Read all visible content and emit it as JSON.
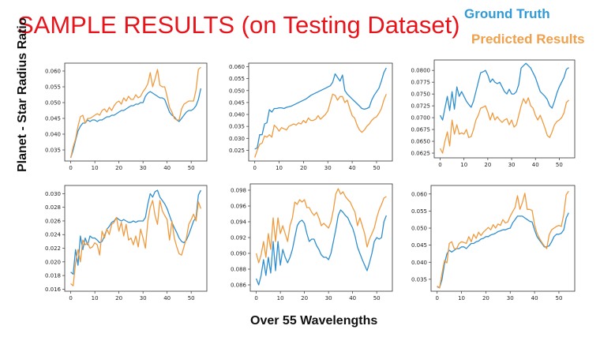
{
  "title": "SAMPLE RESULTS (on Testing Dataset)",
  "legend": {
    "ground_truth": "Ground Truth",
    "predicted": "Predicted Results"
  },
  "ylabel": "Planet - Star  Radius Ratio",
  "xlabel": "Over 55 Wavelengths",
  "colors": {
    "ground_truth": "#2f8fcf",
    "predicted": "#f09a3e",
    "title": "#e8141b"
  },
  "chart_data": [
    {
      "type": "line",
      "ylim": [
        0.0315,
        0.0625
      ],
      "yticks": [
        "0.035",
        "0.040",
        "0.045",
        "0.050",
        "0.055",
        "0.060"
      ],
      "xticks": [
        "0",
        "10",
        "20",
        "30",
        "40",
        "50"
      ],
      "series": [
        {
          "role": "ground_truth",
          "values": [
            0.0325,
            0.035,
            0.038,
            0.041,
            0.0425,
            0.0435,
            0.0435,
            0.0445,
            0.044,
            0.0445,
            0.0445,
            0.044,
            0.0445,
            0.0445,
            0.045,
            0.0455,
            0.0455,
            0.046,
            0.046,
            0.0465,
            0.047,
            0.0475,
            0.0475,
            0.048,
            0.0485,
            0.049,
            0.049,
            0.0495,
            0.0495,
            0.05,
            0.05,
            0.052,
            0.053,
            0.0535,
            0.053,
            0.0525,
            0.052,
            0.0515,
            0.0515,
            0.051,
            0.049,
            0.047,
            0.046,
            0.0455,
            0.0445,
            0.044,
            0.045,
            0.046,
            0.047,
            0.0475,
            0.0475,
            0.048,
            0.049,
            0.051,
            0.0545
          ]
        },
        {
          "role": "predicted",
          "values": [
            0.0325,
            0.036,
            0.0385,
            0.0425,
            0.0455,
            0.046,
            0.0435,
            0.045,
            0.045,
            0.0455,
            0.046,
            0.0465,
            0.046,
            0.0475,
            0.048,
            0.047,
            0.0485,
            0.0475,
            0.049,
            0.05,
            0.0505,
            0.0495,
            0.0515,
            0.0505,
            0.052,
            0.051,
            0.051,
            0.0525,
            0.0515,
            0.052,
            0.0535,
            0.0545,
            0.056,
            0.0595,
            0.055,
            0.0575,
            0.0605,
            0.0555,
            0.055,
            0.055,
            0.052,
            0.0485,
            0.047,
            0.045,
            0.0445,
            0.0445,
            0.048,
            0.0495,
            0.05,
            0.0505,
            0.0505,
            0.0505,
            0.054,
            0.0605,
            0.0612
          ]
        }
      ]
    },
    {
      "type": "line",
      "ylim": [
        0.0205,
        0.0615
      ],
      "yticks": [
        "0.025",
        "0.030",
        "0.035",
        "0.040",
        "0.045",
        "0.050",
        "0.055",
        "0.060"
      ],
      "xticks": [
        "0",
        "10",
        "20",
        "30",
        "40",
        "50"
      ],
      "series": [
        {
          "role": "ground_truth",
          "values": [
            0.0255,
            0.026,
            0.0315,
            0.0315,
            0.036,
            0.0365,
            0.042,
            0.041,
            0.0425,
            0.0425,
            0.0428,
            0.0428,
            0.0425,
            0.043,
            0.0432,
            0.0435,
            0.044,
            0.0445,
            0.045,
            0.0455,
            0.046,
            0.0465,
            0.0472,
            0.048,
            0.0485,
            0.049,
            0.0495,
            0.05,
            0.0505,
            0.051,
            0.0515,
            0.052,
            0.0535,
            0.057,
            0.0555,
            0.054,
            0.0565,
            0.05,
            0.0485,
            0.0475,
            0.0465,
            0.0455,
            0.0445,
            0.0435,
            0.0425,
            0.0422,
            0.0425,
            0.043,
            0.046,
            0.048,
            0.0495,
            0.051,
            0.054,
            0.0575,
            0.0595
          ]
        },
        {
          "role": "predicted",
          "values": [
            0.022,
            0.025,
            0.0275,
            0.028,
            0.031,
            0.0305,
            0.0315,
            0.0305,
            0.0355,
            0.0345,
            0.033,
            0.0345,
            0.034,
            0.0335,
            0.035,
            0.0355,
            0.036,
            0.0355,
            0.0365,
            0.036,
            0.0375,
            0.0365,
            0.0385,
            0.0375,
            0.0375,
            0.038,
            0.0395,
            0.038,
            0.039,
            0.04,
            0.0415,
            0.045,
            0.0485,
            0.048,
            0.046,
            0.0475,
            0.0475,
            0.045,
            0.046,
            0.0425,
            0.0395,
            0.0385,
            0.0355,
            0.0335,
            0.0325,
            0.0335,
            0.035,
            0.036,
            0.0375,
            0.0385,
            0.039,
            0.0405,
            0.0425,
            0.046,
            0.0485
          ]
        }
      ]
    },
    {
      "type": "line",
      "ylim": [
        0.0615,
        0.0822
      ],
      "yticks": [
        "0.0625",
        "0.0650",
        "0.0675",
        "0.0700",
        "0.0725",
        "0.0750",
        "0.0775",
        "0.0800"
      ],
      "xticks": [
        "0",
        "10",
        "20",
        "30",
        "40",
        "50"
      ],
      "series": [
        {
          "role": "ground_truth",
          "values": [
            0.0705,
            0.0695,
            0.072,
            0.0745,
            0.0715,
            0.0755,
            0.0718,
            0.0765,
            0.0745,
            0.0755,
            0.0745,
            0.0735,
            0.0728,
            0.0722,
            0.0735,
            0.0755,
            0.0775,
            0.0795,
            0.0797,
            0.08,
            0.079,
            0.0775,
            0.0782,
            0.0775,
            0.0772,
            0.0775,
            0.0765,
            0.0755,
            0.075,
            0.076,
            0.075,
            0.075,
            0.0755,
            0.077,
            0.0805,
            0.081,
            0.0815,
            0.081,
            0.0805,
            0.0795,
            0.0785,
            0.077,
            0.0755,
            0.075,
            0.0745,
            0.0738,
            0.0725,
            0.072,
            0.0735,
            0.0752,
            0.0765,
            0.0775,
            0.0785,
            0.0802,
            0.0806
          ]
        },
        {
          "role": "predicted",
          "values": [
            0.0635,
            0.0625,
            0.065,
            0.067,
            0.064,
            0.0695,
            0.0665,
            0.0685,
            0.0665,
            0.0668,
            0.0665,
            0.0675,
            0.0658,
            0.066,
            0.0675,
            0.0695,
            0.0705,
            0.072,
            0.0722,
            0.0725,
            0.0712,
            0.0695,
            0.071,
            0.0695,
            0.0702,
            0.0695,
            0.069,
            0.0695,
            0.0698,
            0.0685,
            0.0695,
            0.068,
            0.0685,
            0.0705,
            0.0725,
            0.074,
            0.073,
            0.0742,
            0.0725,
            0.072,
            0.0705,
            0.0695,
            0.0705,
            0.0692,
            0.0678,
            0.0662,
            0.0658,
            0.067,
            0.0685,
            0.0692,
            0.0695,
            0.07,
            0.071,
            0.0732,
            0.0737
          ]
        }
      ]
    },
    {
      "type": "line",
      "ylim": [
        0.0157,
        0.0312
      ],
      "yticks": [
        "0.016",
        "0.018",
        "0.020",
        "0.022",
        "0.024",
        "0.026",
        "0.028",
        "0.030"
      ],
      "xticks": [
        "0",
        "10",
        "20",
        "30",
        "40",
        "50"
      ],
      "series": [
        {
          "role": "ground_truth",
          "values": [
            0.0185,
            0.0182,
            0.0218,
            0.0195,
            0.0238,
            0.0218,
            0.0235,
            0.0225,
            0.0238,
            0.0235,
            0.0235,
            0.0232,
            0.0228,
            0.023,
            0.0238,
            0.0248,
            0.0252,
            0.0258,
            0.026,
            0.0265,
            0.0262,
            0.026,
            0.0262,
            0.026,
            0.0258,
            0.0258,
            0.026,
            0.0258,
            0.026,
            0.026,
            0.026,
            0.0265,
            0.0285,
            0.03,
            0.0295,
            0.0303,
            0.0305,
            0.0295,
            0.029,
            0.0285,
            0.0278,
            0.0268,
            0.0258,
            0.025,
            0.0243,
            0.0235,
            0.023,
            0.0228,
            0.0232,
            0.024,
            0.025,
            0.026,
            0.0265,
            0.0298,
            0.0305
          ]
        },
        {
          "role": "predicted",
          "values": [
            0.0168,
            0.0165,
            0.0198,
            0.0218,
            0.02,
            0.0232,
            0.0225,
            0.0228,
            0.022,
            0.0222,
            0.0228,
            0.0225,
            0.021,
            0.0245,
            0.0235,
            0.0248,
            0.024,
            0.0255,
            0.0258,
            0.0265,
            0.0245,
            0.0258,
            0.0238,
            0.0255,
            0.0232,
            0.0235,
            0.0225,
            0.0238,
            0.0222,
            0.0248,
            0.0235,
            0.022,
            0.026,
            0.028,
            0.029,
            0.0268,
            0.0255,
            0.029,
            0.0275,
            0.0268,
            0.0262,
            0.0232,
            0.026,
            0.0235,
            0.0222,
            0.0212,
            0.021,
            0.0222,
            0.0235,
            0.0255,
            0.0262,
            0.027,
            0.026,
            0.0288,
            0.0278
          ]
        }
      ]
    },
    {
      "type": "line",
      "ylim": [
        0.0852,
        0.0988
      ],
      "yticks": [
        "0.086",
        "0.088",
        "0.090",
        "0.092",
        "0.094",
        "0.096",
        "0.098"
      ],
      "xticks": [
        "0",
        "10",
        "20",
        "30",
        "40",
        "50"
      ],
      "series": [
        {
          "role": "ground_truth",
          "values": [
            0.0868,
            0.086,
            0.0872,
            0.0892,
            0.0872,
            0.0895,
            0.0875,
            0.0915,
            0.0878,
            0.0915,
            0.0885,
            0.0905,
            0.0895,
            0.0888,
            0.0895,
            0.0905,
            0.092,
            0.0935,
            0.094,
            0.0942,
            0.0938,
            0.0925,
            0.0915,
            0.0918,
            0.0918,
            0.091,
            0.0905,
            0.0898,
            0.0895,
            0.0895,
            0.0892,
            0.09,
            0.0915,
            0.093,
            0.0948,
            0.0955,
            0.0952,
            0.0948,
            0.0945,
            0.0938,
            0.0932,
            0.0922,
            0.0908,
            0.09,
            0.0892,
            0.0885,
            0.0878,
            0.0888,
            0.09,
            0.0915,
            0.092,
            0.0918,
            0.092,
            0.094,
            0.0948
          ]
        },
        {
          "role": "predicted",
          "values": [
            0.09,
            0.0888,
            0.0898,
            0.0915,
            0.0895,
            0.0925,
            0.0905,
            0.0945,
            0.0915,
            0.0945,
            0.0925,
            0.0935,
            0.0925,
            0.0915,
            0.0935,
            0.0945,
            0.0965,
            0.0962,
            0.0968,
            0.0965,
            0.0968,
            0.0958,
            0.0958,
            0.0952,
            0.0948,
            0.0952,
            0.0945,
            0.0935,
            0.0938,
            0.0935,
            0.0932,
            0.094,
            0.0955,
            0.0975,
            0.0982,
            0.0975,
            0.0978,
            0.0972,
            0.0968,
            0.0965,
            0.0958,
            0.0952,
            0.0935,
            0.0945,
            0.0935,
            0.0925,
            0.0908,
            0.0918,
            0.0925,
            0.0932,
            0.0945,
            0.0955,
            0.0962,
            0.097,
            0.0972
          ]
        }
      ]
    },
    {
      "type": "line",
      "ylim": [
        0.0315,
        0.0625
      ],
      "yticks": [
        "0.035",
        "0.040",
        "0.045",
        "0.050",
        "0.055",
        "0.060"
      ],
      "xticks": [
        "0",
        "10",
        "20",
        "30",
        "40",
        "50"
      ],
      "series": [
        {
          "role": "ground_truth",
          "values": [
            0.0328,
            0.0325,
            0.035,
            0.0395,
            0.0425,
            0.0435,
            0.043,
            0.0435,
            0.044,
            0.044,
            0.0445,
            0.0445,
            0.044,
            0.0448,
            0.0455,
            0.0455,
            0.046,
            0.0462,
            0.0468,
            0.047,
            0.0475,
            0.0475,
            0.048,
            0.0482,
            0.0485,
            0.049,
            0.0492,
            0.0495,
            0.0495,
            0.0498,
            0.05,
            0.0515,
            0.0525,
            0.0535,
            0.0535,
            0.0535,
            0.053,
            0.0525,
            0.052,
            0.0518,
            0.0495,
            0.0475,
            0.0465,
            0.0455,
            0.0445,
            0.0445,
            0.0448,
            0.046,
            0.0475,
            0.0482,
            0.0482,
            0.0485,
            0.0495,
            0.053,
            0.0545
          ]
        },
        {
          "role": "predicted",
          "values": [
            0.033,
            0.0325,
            0.0368,
            0.0405,
            0.0398,
            0.0455,
            0.046,
            0.044,
            0.044,
            0.0455,
            0.046,
            0.0458,
            0.0455,
            0.0475,
            0.046,
            0.0482,
            0.047,
            0.0488,
            0.0478,
            0.0488,
            0.0495,
            0.0502,
            0.0495,
            0.051,
            0.05,
            0.0512,
            0.0508,
            0.0525,
            0.0515,
            0.0518,
            0.0535,
            0.0548,
            0.056,
            0.0595,
            0.0555,
            0.0575,
            0.0602,
            0.0555,
            0.0555,
            0.0552,
            0.051,
            0.0485,
            0.047,
            0.0458,
            0.0448,
            0.044,
            0.048,
            0.0495,
            0.05,
            0.0505,
            0.0508,
            0.0505,
            0.054,
            0.0598,
            0.0608
          ]
        }
      ]
    }
  ]
}
